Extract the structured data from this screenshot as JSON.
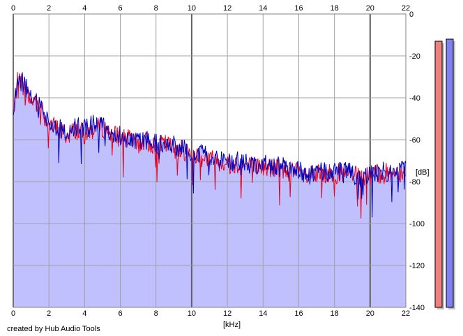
{
  "chart_data": {
    "type": "area",
    "x_ticks": [
      "0",
      "2",
      "4",
      "6",
      "8",
      "10",
      "12",
      "14",
      "16",
      "18",
      "20",
      "22"
    ],
    "y_ticks": [
      "0",
      "-20",
      "-40",
      "-60",
      "-80",
      "-100",
      "-120",
      "-140"
    ],
    "xlabel": "[kHz]",
    "ylabel": "[dB]",
    "xlim": [
      0,
      22
    ],
    "ylim": [
      -140,
      0
    ],
    "grid": true,
    "series": [
      {
        "color": "#e8001c",
        "x": [
          0,
          0.2,
          0.4,
          0.6,
          0.8,
          1.0,
          1.2,
          1.4,
          1.6,
          1.8,
          2,
          2.5,
          3,
          3.5,
          4,
          4.5,
          5,
          5.5,
          6,
          6.5,
          7,
          7.5,
          8,
          8.5,
          9,
          9.5,
          10,
          11,
          12,
          13,
          14,
          15,
          16,
          16.5,
          17,
          18,
          19,
          19.5,
          20,
          21,
          22
        ],
        "y": [
          -48,
          -33,
          -31,
          -35,
          -38,
          -42,
          -40,
          -46,
          -44,
          -50,
          -52,
          -55,
          -58,
          -55,
          -57,
          -55,
          -54,
          -57,
          -59,
          -60,
          -62,
          -61,
          -63,
          -62,
          -64,
          -65,
          -67,
          -69,
          -71,
          -72,
          -73,
          -74,
          -76,
          -78,
          -77,
          -76,
          -77,
          -79,
          -77,
          -76,
          -75
        ]
      },
      {
        "color": "#0000c0",
        "x": [
          0,
          0.2,
          0.4,
          0.6,
          0.8,
          1.0,
          1.2,
          1.4,
          1.6,
          1.8,
          2,
          2.5,
          3,
          3.5,
          4,
          4.5,
          5,
          5.5,
          6,
          6.5,
          7,
          7.5,
          8,
          8.5,
          9,
          9.5,
          10,
          11,
          12,
          13,
          14,
          15,
          16,
          16.5,
          17,
          18,
          19,
          19.5,
          20,
          21,
          22
        ],
        "y": [
          -50,
          -32,
          -30,
          -33,
          -37,
          -41,
          -39,
          -45,
          -43,
          -49,
          -51,
          -54,
          -57,
          -54,
          -55,
          -53,
          -53,
          -56,
          -58,
          -59,
          -61,
          -60,
          -62,
          -61,
          -63,
          -64,
          -66,
          -68,
          -70,
          -71,
          -72,
          -73,
          -75,
          -77,
          -76,
          -75,
          -76,
          -78,
          -76,
          -75,
          -74
        ]
      }
    ],
    "fill_color": "#c0c0ff",
    "level_meters": [
      {
        "color": "#f08080",
        "level_db": -13
      },
      {
        "color": "#8080f0",
        "level_db": -12
      }
    ]
  },
  "footer": {
    "credit": "created by Hub Audio Tools"
  }
}
